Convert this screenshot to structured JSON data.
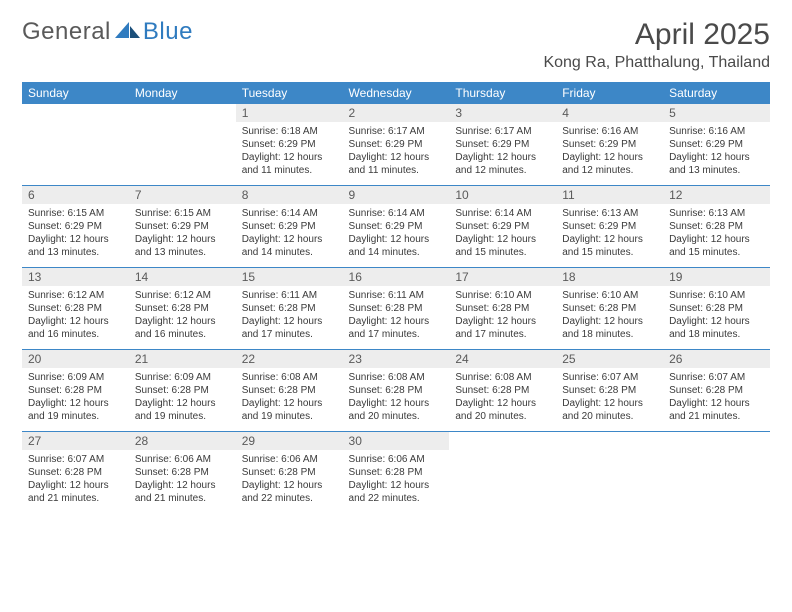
{
  "brand": {
    "part1": "General",
    "part2": "Blue"
  },
  "header": {
    "title": "April 2025",
    "location": "Kong Ra, Phatthalung, Thailand"
  },
  "style": {
    "header_bg": "#3d87c7",
    "header_text": "#ffffff",
    "daynum_bg": "#ededed",
    "rule_color": "#3d87c7",
    "page_bg": "#ffffff",
    "brand_accent": "#2f7bbf",
    "body_text": "#3a3a3a",
    "title_fontsize": 30,
    "location_fontsize": 16,
    "weekday_fontsize": 12,
    "daynum_fontsize": 12,
    "cell_fontsize": 10
  },
  "calendar": {
    "weekdays": [
      "Sunday",
      "Monday",
      "Tuesday",
      "Wednesday",
      "Thursday",
      "Friday",
      "Saturday"
    ],
    "weeks": [
      [
        null,
        null,
        {
          "n": "1",
          "sr": "Sunrise: 6:18 AM",
          "ss": "Sunset: 6:29 PM",
          "dl": "Daylight: 12 hours and 11 minutes."
        },
        {
          "n": "2",
          "sr": "Sunrise: 6:17 AM",
          "ss": "Sunset: 6:29 PM",
          "dl": "Daylight: 12 hours and 11 minutes."
        },
        {
          "n": "3",
          "sr": "Sunrise: 6:17 AM",
          "ss": "Sunset: 6:29 PM",
          "dl": "Daylight: 12 hours and 12 minutes."
        },
        {
          "n": "4",
          "sr": "Sunrise: 6:16 AM",
          "ss": "Sunset: 6:29 PM",
          "dl": "Daylight: 12 hours and 12 minutes."
        },
        {
          "n": "5",
          "sr": "Sunrise: 6:16 AM",
          "ss": "Sunset: 6:29 PM",
          "dl": "Daylight: 12 hours and 13 minutes."
        }
      ],
      [
        {
          "n": "6",
          "sr": "Sunrise: 6:15 AM",
          "ss": "Sunset: 6:29 PM",
          "dl": "Daylight: 12 hours and 13 minutes."
        },
        {
          "n": "7",
          "sr": "Sunrise: 6:15 AM",
          "ss": "Sunset: 6:29 PM",
          "dl": "Daylight: 12 hours and 13 minutes."
        },
        {
          "n": "8",
          "sr": "Sunrise: 6:14 AM",
          "ss": "Sunset: 6:29 PM",
          "dl": "Daylight: 12 hours and 14 minutes."
        },
        {
          "n": "9",
          "sr": "Sunrise: 6:14 AM",
          "ss": "Sunset: 6:29 PM",
          "dl": "Daylight: 12 hours and 14 minutes."
        },
        {
          "n": "10",
          "sr": "Sunrise: 6:14 AM",
          "ss": "Sunset: 6:29 PM",
          "dl": "Daylight: 12 hours and 15 minutes."
        },
        {
          "n": "11",
          "sr": "Sunrise: 6:13 AM",
          "ss": "Sunset: 6:29 PM",
          "dl": "Daylight: 12 hours and 15 minutes."
        },
        {
          "n": "12",
          "sr": "Sunrise: 6:13 AM",
          "ss": "Sunset: 6:28 PM",
          "dl": "Daylight: 12 hours and 15 minutes."
        }
      ],
      [
        {
          "n": "13",
          "sr": "Sunrise: 6:12 AM",
          "ss": "Sunset: 6:28 PM",
          "dl": "Daylight: 12 hours and 16 minutes."
        },
        {
          "n": "14",
          "sr": "Sunrise: 6:12 AM",
          "ss": "Sunset: 6:28 PM",
          "dl": "Daylight: 12 hours and 16 minutes."
        },
        {
          "n": "15",
          "sr": "Sunrise: 6:11 AM",
          "ss": "Sunset: 6:28 PM",
          "dl": "Daylight: 12 hours and 17 minutes."
        },
        {
          "n": "16",
          "sr": "Sunrise: 6:11 AM",
          "ss": "Sunset: 6:28 PM",
          "dl": "Daylight: 12 hours and 17 minutes."
        },
        {
          "n": "17",
          "sr": "Sunrise: 6:10 AM",
          "ss": "Sunset: 6:28 PM",
          "dl": "Daylight: 12 hours and 17 minutes."
        },
        {
          "n": "18",
          "sr": "Sunrise: 6:10 AM",
          "ss": "Sunset: 6:28 PM",
          "dl": "Daylight: 12 hours and 18 minutes."
        },
        {
          "n": "19",
          "sr": "Sunrise: 6:10 AM",
          "ss": "Sunset: 6:28 PM",
          "dl": "Daylight: 12 hours and 18 minutes."
        }
      ],
      [
        {
          "n": "20",
          "sr": "Sunrise: 6:09 AM",
          "ss": "Sunset: 6:28 PM",
          "dl": "Daylight: 12 hours and 19 minutes."
        },
        {
          "n": "21",
          "sr": "Sunrise: 6:09 AM",
          "ss": "Sunset: 6:28 PM",
          "dl": "Daylight: 12 hours and 19 minutes."
        },
        {
          "n": "22",
          "sr": "Sunrise: 6:08 AM",
          "ss": "Sunset: 6:28 PM",
          "dl": "Daylight: 12 hours and 19 minutes."
        },
        {
          "n": "23",
          "sr": "Sunrise: 6:08 AM",
          "ss": "Sunset: 6:28 PM",
          "dl": "Daylight: 12 hours and 20 minutes."
        },
        {
          "n": "24",
          "sr": "Sunrise: 6:08 AM",
          "ss": "Sunset: 6:28 PM",
          "dl": "Daylight: 12 hours and 20 minutes."
        },
        {
          "n": "25",
          "sr": "Sunrise: 6:07 AM",
          "ss": "Sunset: 6:28 PM",
          "dl": "Daylight: 12 hours and 20 minutes."
        },
        {
          "n": "26",
          "sr": "Sunrise: 6:07 AM",
          "ss": "Sunset: 6:28 PM",
          "dl": "Daylight: 12 hours and 21 minutes."
        }
      ],
      [
        {
          "n": "27",
          "sr": "Sunrise: 6:07 AM",
          "ss": "Sunset: 6:28 PM",
          "dl": "Daylight: 12 hours and 21 minutes."
        },
        {
          "n": "28",
          "sr": "Sunrise: 6:06 AM",
          "ss": "Sunset: 6:28 PM",
          "dl": "Daylight: 12 hours and 21 minutes."
        },
        {
          "n": "29",
          "sr": "Sunrise: 6:06 AM",
          "ss": "Sunset: 6:28 PM",
          "dl": "Daylight: 12 hours and 22 minutes."
        },
        {
          "n": "30",
          "sr": "Sunrise: 6:06 AM",
          "ss": "Sunset: 6:28 PM",
          "dl": "Daylight: 12 hours and 22 minutes."
        },
        null,
        null,
        null
      ]
    ]
  }
}
